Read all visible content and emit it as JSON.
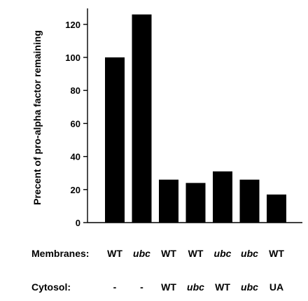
{
  "chart_data": {
    "type": "bar",
    "title": "",
    "ylabel": "Precent of pro-alpha factor remaining",
    "xlabel": "",
    "ylim": [
      0,
      130
    ],
    "yticks": [
      0,
      20,
      40,
      60,
      80,
      100,
      120
    ],
    "bar_color": "#000000",
    "grid": false,
    "values": [
      100,
      126,
      26,
      24,
      31,
      26,
      17
    ],
    "rows": [
      {
        "label": "Membranes:",
        "conditions": [
          "WT",
          "ubc",
          "WT",
          "WT",
          "ubc",
          "ubc",
          "WT"
        ],
        "italic": [
          false,
          true,
          false,
          false,
          true,
          true,
          false
        ]
      },
      {
        "label": "Cytosol:",
        "conditions": [
          "-",
          "-",
          "WT",
          "ubc",
          "WT",
          "ubc",
          "UA"
        ],
        "italic": [
          false,
          false,
          false,
          true,
          false,
          true,
          false
        ]
      }
    ]
  }
}
